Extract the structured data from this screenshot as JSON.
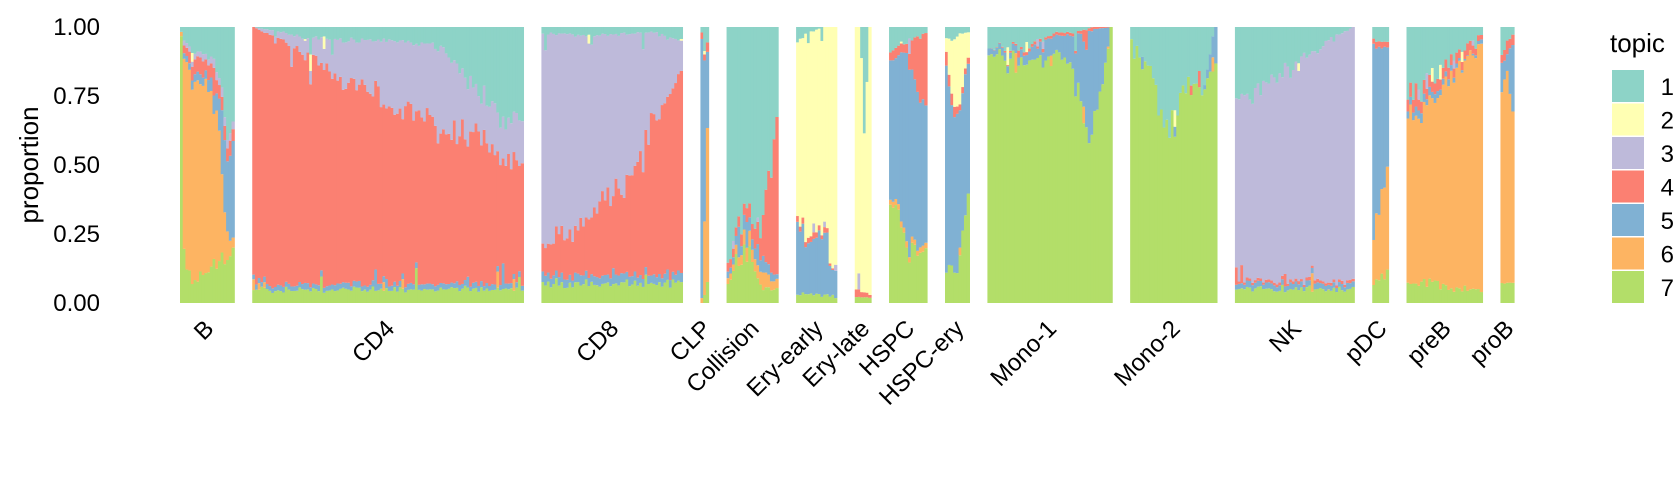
{
  "chart_data": {
    "type": "stacked-bar",
    "ylabel": "proportion",
    "ylim": [
      0,
      1
    ],
    "yticks": [
      "0.00",
      "0.25",
      "0.50",
      "0.75",
      "1.00"
    ],
    "grid": false,
    "legend": {
      "title": "topic",
      "position": "right",
      "entries": [
        "1",
        "2",
        "3",
        "4",
        "5",
        "6",
        "7"
      ],
      "colors": [
        "#8DD3C7",
        "#FFFFB3",
        "#BEBADA",
        "#FB8072",
        "#80B1D3",
        "#FDB462",
        "#B3DE69"
      ]
    },
    "groups": [
      {
        "name": "B",
        "cells": 20,
        "profiles": [
          {
            "t": 0.0,
            "v": [
              0.02,
              0.0,
              0.0,
              0.0,
              0.0,
              0.02,
              0.96
            ]
          },
          {
            "t": 0.05,
            "v": [
              0.05,
              0.0,
              0.02,
              0.03,
              0.02,
              0.68,
              0.2
            ]
          },
          {
            "t": 0.2,
            "v": [
              0.08,
              0.0,
              0.02,
              0.05,
              0.03,
              0.74,
              0.08
            ]
          },
          {
            "t": 0.45,
            "v": [
              0.1,
              0.0,
              0.02,
              0.05,
              0.03,
              0.7,
              0.1
            ]
          },
          {
            "t": 0.7,
            "v": [
              0.15,
              0.0,
              0.03,
              0.05,
              0.07,
              0.55,
              0.15
            ]
          },
          {
            "t": 0.85,
            "v": [
              0.3,
              0.0,
              0.03,
              0.05,
              0.3,
              0.15,
              0.17
            ]
          },
          {
            "t": 1.0,
            "v": [
              0.4,
              0.0,
              0.03,
              0.05,
              0.3,
              0.02,
              0.2
            ]
          }
        ]
      },
      {
        "name": "CD4",
        "cells": 100,
        "profiles": [
          {
            "t": 0.0,
            "v": [
              0.0,
              0.0,
              0.0,
              0.93,
              0.02,
              0.0,
              0.05
            ]
          },
          {
            "t": 0.2,
            "v": [
              0.04,
              0.0,
              0.06,
              0.83,
              0.02,
              0.0,
              0.05
            ]
          },
          {
            "t": 0.4,
            "v": [
              0.05,
              0.0,
              0.17,
              0.71,
              0.02,
              0.0,
              0.05
            ]
          },
          {
            "t": 0.55,
            "v": [
              0.05,
              0.0,
              0.25,
              0.63,
              0.02,
              0.0,
              0.05
            ]
          },
          {
            "t": 0.7,
            "v": [
              0.08,
              0.0,
              0.3,
              0.55,
              0.02,
              0.0,
              0.05
            ]
          },
          {
            "t": 0.85,
            "v": [
              0.25,
              0.0,
              0.15,
              0.53,
              0.02,
              0.0,
              0.05
            ]
          },
          {
            "t": 1.0,
            "v": [
              0.38,
              0.0,
              0.15,
              0.4,
              0.02,
              0.0,
              0.05
            ]
          }
        ]
      },
      {
        "name": "CD8",
        "cells": 52,
        "profiles": [
          {
            "t": 0.0,
            "v": [
              0.02,
              0.0,
              0.78,
              0.1,
              0.03,
              0.0,
              0.07
            ]
          },
          {
            "t": 0.25,
            "v": [
              0.03,
              0.0,
              0.7,
              0.17,
              0.03,
              0.0,
              0.07
            ]
          },
          {
            "t": 0.5,
            "v": [
              0.03,
              0.0,
              0.55,
              0.32,
              0.03,
              0.0,
              0.07
            ]
          },
          {
            "t": 0.65,
            "v": [
              0.02,
              0.0,
              0.52,
              0.36,
              0.03,
              0.0,
              0.07
            ]
          },
          {
            "t": 0.8,
            "v": [
              0.02,
              0.0,
              0.33,
              0.55,
              0.03,
              0.0,
              0.07
            ]
          },
          {
            "t": 1.0,
            "v": [
              0.05,
              0.0,
              0.1,
              0.75,
              0.03,
              0.0,
              0.07
            ]
          }
        ]
      },
      {
        "name": "CLP",
        "cells": 3,
        "profiles": [
          {
            "t": 0.0,
            "v": [
              0.02,
              0.0,
              0.0,
              0.02,
              0.96,
              0.0,
              0.0
            ]
          },
          {
            "t": 1.0,
            "v": [
              0.05,
              0.0,
              0.0,
              0.03,
              0.3,
              0.55,
              0.07
            ]
          }
        ]
      },
      {
        "name": "Collision",
        "cells": 19,
        "profiles": [
          {
            "t": 0.0,
            "v": [
              0.85,
              0.0,
              0.0,
              0.03,
              0.02,
              0.02,
              0.08
            ]
          },
          {
            "t": 0.4,
            "v": [
              0.65,
              0.0,
              0.0,
              0.05,
              0.05,
              0.05,
              0.2
            ]
          },
          {
            "t": 0.7,
            "v": [
              0.75,
              0.0,
              0.0,
              0.1,
              0.05,
              0.05,
              0.05
            ]
          },
          {
            "t": 1.0,
            "v": [
              0.35,
              0.0,
              0.0,
              0.55,
              0.02,
              0.03,
              0.05
            ]
          }
        ]
      },
      {
        "name": "Ery-early",
        "cells": 15,
        "profiles": [
          {
            "t": 0.0,
            "v": [
              0.05,
              0.6,
              0.0,
              0.02,
              0.3,
              0.0,
              0.03
            ]
          },
          {
            "t": 0.3,
            "v": [
              0.02,
              0.75,
              0.0,
              0.02,
              0.18,
              0.0,
              0.03
            ]
          },
          {
            "t": 0.7,
            "v": [
              0.0,
              0.72,
              0.0,
              0.02,
              0.23,
              0.0,
              0.03
            ]
          },
          {
            "t": 1.0,
            "v": [
              0.0,
              0.95,
              0.0,
              0.0,
              0.03,
              0.0,
              0.02
            ]
          }
        ]
      },
      {
        "name": "Ery-late",
        "cells": 6,
        "profiles": [
          {
            "t": 0.0,
            "v": [
              0.0,
              0.95,
              0.0,
              0.03,
              0.0,
              0.0,
              0.02
            ]
          },
          {
            "t": 0.3,
            "v": [
              0.0,
              0.96,
              0.0,
              0.02,
              0.0,
              0.0,
              0.02
            ]
          },
          {
            "t": 0.6,
            "v": [
              0.4,
              0.56,
              0.0,
              0.02,
              0.0,
              0.0,
              0.02
            ]
          },
          {
            "t": 1.0,
            "v": [
              0.0,
              0.97,
              0.0,
              0.01,
              0.0,
              0.0,
              0.02
            ]
          }
        ]
      },
      {
        "name": "HSPC",
        "cells": 14,
        "profiles": [
          {
            "t": 0.0,
            "v": [
              0.08,
              0.0,
              0.0,
              0.03,
              0.45,
              0.02,
              0.42
            ]
          },
          {
            "t": 0.5,
            "v": [
              0.05,
              0.0,
              0.0,
              0.03,
              0.72,
              0.02,
              0.18
            ]
          },
          {
            "t": 1.0,
            "v": [
              0.02,
              0.0,
              0.0,
              0.3,
              0.48,
              0.02,
              0.18
            ]
          }
        ]
      },
      {
        "name": "HSPC-ery",
        "cells": 9,
        "profiles": [
          {
            "t": 0.0,
            "v": [
              0.05,
              0.05,
              0.0,
              0.05,
              0.73,
              0.0,
              0.12
            ]
          },
          {
            "t": 0.5,
            "v": [
              0.03,
              0.3,
              0.0,
              0.03,
              0.54,
              0.0,
              0.1
            ]
          },
          {
            "t": 1.0,
            "v": [
              0.02,
              0.1,
              0.0,
              0.02,
              0.46,
              0.0,
              0.4
            ]
          }
        ]
      },
      {
        "name": "Mono-1",
        "cells": 46,
        "profiles": [
          {
            "t": 0.0,
            "v": [
              0.08,
              0.0,
              0.0,
              0.0,
              0.02,
              0.0,
              0.9
            ]
          },
          {
            "t": 0.3,
            "v": [
              0.07,
              0.0,
              0.0,
              0.01,
              0.03,
              0.0,
              0.89
            ]
          },
          {
            "t": 0.55,
            "v": [
              0.02,
              0.0,
              0.0,
              0.01,
              0.07,
              0.0,
              0.9
            ]
          },
          {
            "t": 0.7,
            "v": [
              0.02,
              0.0,
              0.0,
              0.01,
              0.12,
              0.0,
              0.85
            ]
          },
          {
            "t": 0.85,
            "v": [
              0.0,
              0.0,
              0.0,
              0.01,
              0.39,
              0.0,
              0.6
            ]
          },
          {
            "t": 1.0,
            "v": [
              0.0,
              0.0,
              0.0,
              0.0,
              0.0,
              0.0,
              1.0
            ]
          }
        ]
      },
      {
        "name": "Mono-2",
        "cells": 32,
        "profiles": [
          {
            "t": 0.0,
            "v": [
              0.05,
              0.0,
              0.0,
              0.0,
              0.0,
              0.0,
              0.95
            ]
          },
          {
            "t": 0.2,
            "v": [
              0.12,
              0.0,
              0.0,
              0.0,
              0.0,
              0.0,
              0.88
            ]
          },
          {
            "t": 0.45,
            "v": [
              0.42,
              0.0,
              0.0,
              0.0,
              0.0,
              0.0,
              0.58
            ]
          },
          {
            "t": 0.6,
            "v": [
              0.22,
              0.0,
              0.0,
              0.0,
              0.0,
              0.0,
              0.78
            ]
          },
          {
            "t": 0.85,
            "v": [
              0.2,
              0.0,
              0.0,
              0.0,
              0.0,
              0.0,
              0.8
            ]
          },
          {
            "t": 1.0,
            "v": [
              0.0,
              0.0,
              0.0,
              0.0,
              0.1,
              0.0,
              0.9
            ]
          }
        ]
      },
      {
        "name": "NK",
        "cells": 44,
        "profiles": [
          {
            "t": 0.0,
            "v": [
              0.27,
              0.0,
              0.65,
              0.01,
              0.02,
              0.0,
              0.05
            ]
          },
          {
            "t": 0.3,
            "v": [
              0.2,
              0.0,
              0.72,
              0.01,
              0.02,
              0.0,
              0.05
            ]
          },
          {
            "t": 0.55,
            "v": [
              0.12,
              0.0,
              0.8,
              0.01,
              0.02,
              0.0,
              0.05
            ]
          },
          {
            "t": 0.8,
            "v": [
              0.05,
              0.0,
              0.87,
              0.01,
              0.02,
              0.0,
              0.05
            ]
          },
          {
            "t": 1.0,
            "v": [
              0.0,
              0.0,
              0.92,
              0.01,
              0.02,
              0.0,
              0.05
            ]
          }
        ]
      },
      {
        "name": "pDC",
        "cells": 6,
        "profiles": [
          {
            "t": 0.0,
            "v": [
              0.05,
              0.0,
              0.0,
              0.02,
              0.68,
              0.18,
              0.07
            ]
          },
          {
            "t": 1.0,
            "v": [
              0.05,
              0.0,
              0.0,
              0.02,
              0.45,
              0.38,
              0.1
            ]
          }
        ]
      },
      {
        "name": "preB",
        "cells": 28,
        "profiles": [
          {
            "t": 0.0,
            "v": [
              0.25,
              0.0,
              0.0,
              0.05,
              0.03,
              0.6,
              0.07
            ]
          },
          {
            "t": 0.3,
            "v": [
              0.2,
              0.0,
              0.0,
              0.04,
              0.03,
              0.65,
              0.08
            ]
          },
          {
            "t": 0.6,
            "v": [
              0.12,
              0.0,
              0.0,
              0.04,
              0.02,
              0.77,
              0.05
            ]
          },
          {
            "t": 0.85,
            "v": [
              0.05,
              0.0,
              0.0,
              0.03,
              0.0,
              0.87,
              0.05
            ]
          },
          {
            "t": 1.0,
            "v": [
              0.03,
              0.0,
              0.0,
              0.02,
              0.02,
              0.88,
              0.05
            ]
          }
        ]
      },
      {
        "name": "proB",
        "cells": 5,
        "profiles": [
          {
            "t": 0.0,
            "v": [
              0.1,
              0.0,
              0.0,
              0.03,
              0.1,
              0.7,
              0.07
            ]
          },
          {
            "t": 0.5,
            "v": [
              0.05,
              0.0,
              0.0,
              0.05,
              0.05,
              0.78,
              0.07
            ]
          },
          {
            "t": 1.0,
            "v": [
              0.03,
              0.0,
              0.0,
              0.02,
              0.28,
              0.6,
              0.07
            ]
          }
        ]
      }
    ]
  }
}
